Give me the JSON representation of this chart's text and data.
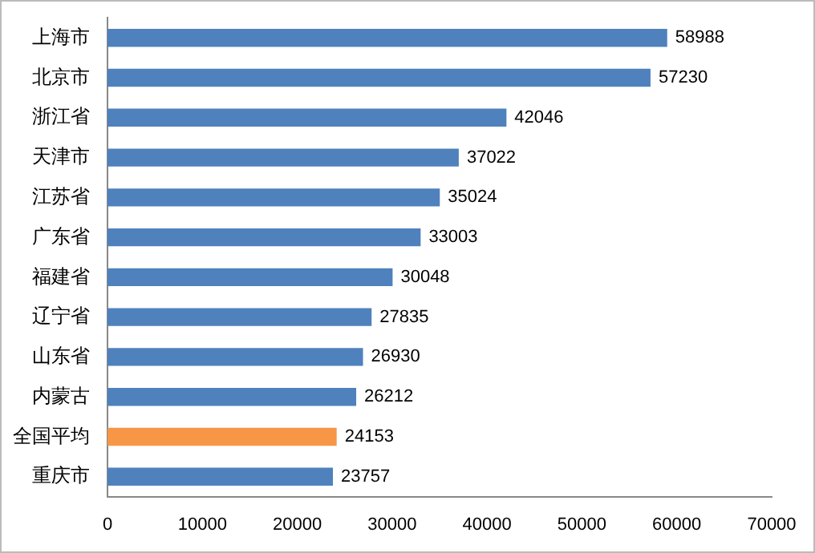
{
  "chart_data": {
    "type": "bar",
    "orientation": "horizontal",
    "categories": [
      "上海市",
      "北京市",
      "浙江省",
      "天津市",
      "江苏省",
      "广东省",
      "福建省",
      "辽宁省",
      "山东省",
      "内蒙古",
      "全国平均",
      "重庆市"
    ],
    "values": [
      58988,
      57230,
      42046,
      37022,
      35024,
      33003,
      30048,
      27835,
      26930,
      26212,
      24153,
      23757
    ],
    "colors": [
      "#4f81bd",
      "#4f81bd",
      "#4f81bd",
      "#4f81bd",
      "#4f81bd",
      "#4f81bd",
      "#4f81bd",
      "#4f81bd",
      "#4f81bd",
      "#4f81bd",
      "#f79646",
      "#4f81bd"
    ],
    "xlim": [
      0,
      70000
    ],
    "xticks": [
      0,
      10000,
      20000,
      30000,
      40000,
      50000,
      60000,
      70000
    ],
    "data_labels": true
  }
}
